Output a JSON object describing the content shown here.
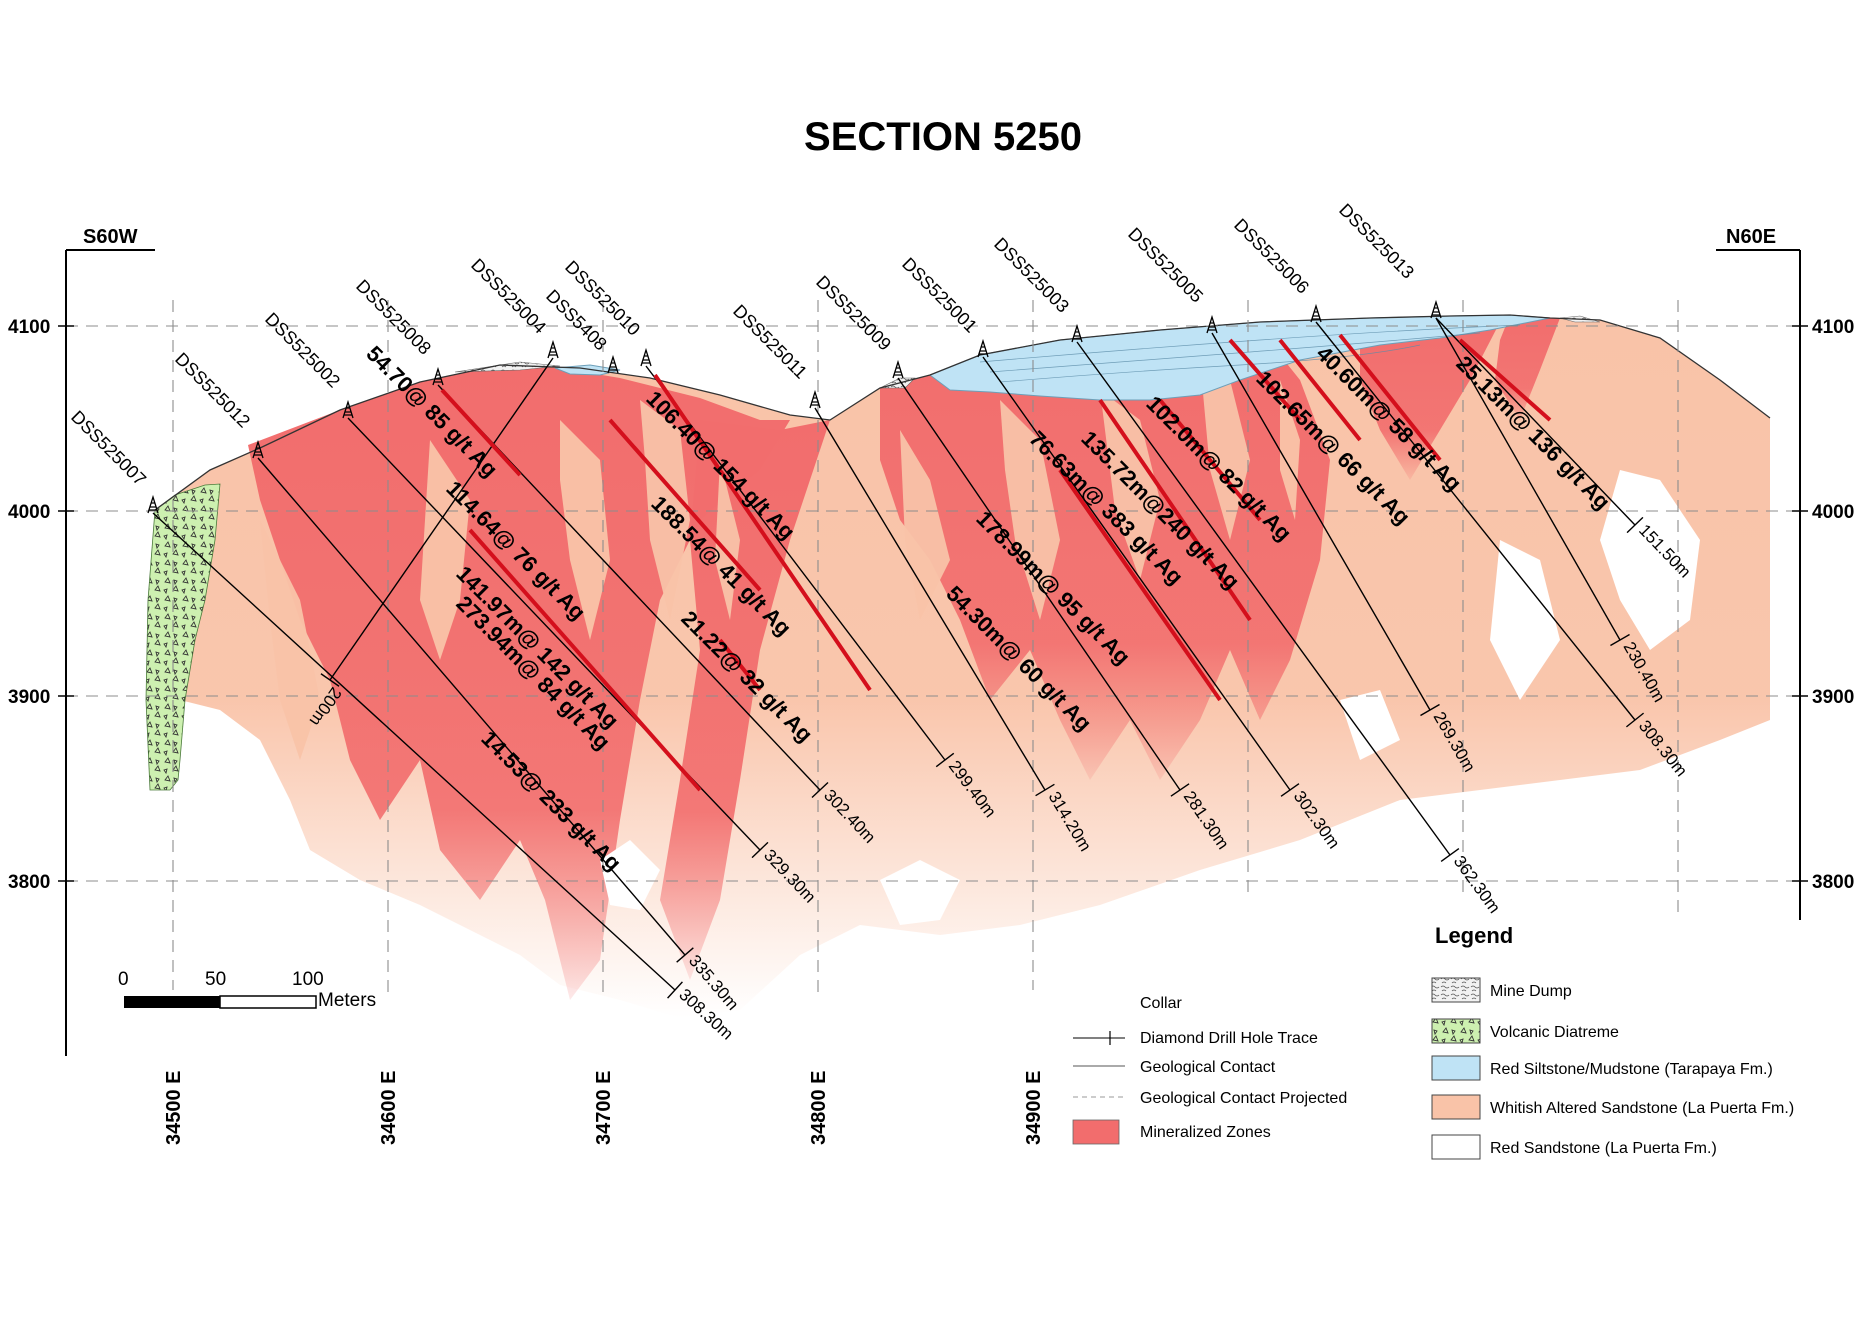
{
  "title": "SECTION 5250",
  "direction_left": "S60W",
  "direction_right": "N60E",
  "elevation_labels": [
    "4100",
    "4000",
    "3900",
    "3800"
  ],
  "easting_labels": [
    "34500 E",
    "34600 E",
    "34700 E",
    "34800 E",
    "34900 E"
  ],
  "holes": [
    {
      "name": "DSS525007",
      "depth": "308.30m"
    },
    {
      "name": "DSS525012",
      "depth": "335.30m"
    },
    {
      "name": "DSS525002",
      "depth": "329.30m"
    },
    {
      "name": "DSS525008",
      "depth": "302.40m"
    },
    {
      "name": "DSS525004",
      "depth": "200m"
    },
    {
      "name": "DSS5408",
      "depth": ""
    },
    {
      "name": "DSS525010",
      "depth": "299.40m"
    },
    {
      "name": "DSS525011",
      "depth": "314.20m"
    },
    {
      "name": "DSS525009",
      "depth": "281.30m"
    },
    {
      "name": "DSS525001",
      "depth": "302.30m"
    },
    {
      "name": "DSS525003",
      "depth": "362.30m"
    },
    {
      "name": "DSS525005",
      "depth": "269.30m"
    },
    {
      "name": "DSS525006",
      "depth": "308.30m"
    },
    {
      "name": "DSS525013",
      "depth": "230.40m"
    },
    {
      "name": "",
      "depth": "151.50m"
    }
  ],
  "assays": [
    "54.70@ 85 g/t Ag",
    "114.64@ 76 g/t Ag",
    "106.40@ 154 g/t Ag",
    "188.54@ 41 g/t Ag",
    "21.22@ 32 g/t Ag",
    "141.97m@ 142 g/t Ag",
    "273.94m@ 84 g/t Ag",
    "14.53@ 233 g/t Ag",
    "178.99m@ 95 g/t Ag",
    "54.30m@ 60 g/t Ag",
    "76.63m@ 383 g/t Ag",
    "135.72m@240 g/t Ag",
    "102.0m@ 82 g/t Ag",
    "102.65m@ 66 g/t Ag",
    "40.60m@ 58 g/t Ag",
    "25.13m@ 136 g/t Ag"
  ],
  "scale_bar": {
    "ticks": [
      "0",
      "50",
      "100"
    ],
    "unit": "Meters"
  },
  "legend_left": {
    "collar": "Collar",
    "drill_trace": "Diamond Drill Hole Trace",
    "contact": "Geological Contact",
    "contact_projected": "Geological Contact Projected",
    "mineralized": "Mineralized Zones"
  },
  "legend": {
    "title": "Legend",
    "mine_dump": "Mine Dump",
    "volcanic": "Volcanic Diatreme",
    "red_siltstone": "Red Siltstone/Mudstone (Tarapaya Fm.)",
    "whitish": "Whitish Altered Sandstone (La Puerta Fm.)",
    "red_sandstone": "Red Sandstone (La Puerta Fm.)"
  },
  "colors": {
    "mineralized": "#f26d6d",
    "whitish": "#f9c3a8",
    "siltstone": "#bfe3f5",
    "volcanic": "#cdf0b0",
    "intercept": "#d40f1c"
  }
}
